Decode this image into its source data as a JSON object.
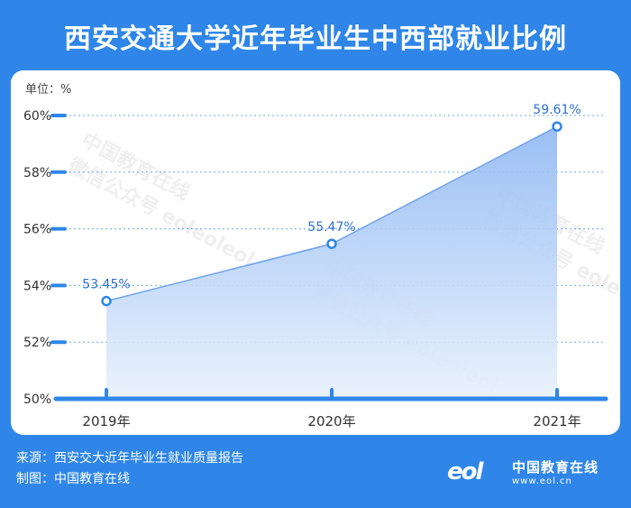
{
  "header": {
    "title": "西安交通大学近年毕业生中西部就业比例"
  },
  "chart_data": {
    "type": "area",
    "unit_label": "单位：%",
    "x": [
      "2019年",
      "2020年",
      "2021年"
    ],
    "values": [
      53.45,
      55.47,
      59.61
    ],
    "value_labels": [
      "53.45%",
      "55.47%",
      "59.61%"
    ],
    "y_ticks": [
      "50%",
      "52%",
      "54%",
      "56%",
      "58%",
      "60%"
    ],
    "y_tick_values": [
      50,
      52,
      54,
      56,
      58,
      60
    ],
    "ylim": [
      50,
      60
    ],
    "grid": true,
    "colors": {
      "line": "#2f86e8",
      "fill_top": "#8fb8f3",
      "fill_bottom": "#e8f1fc",
      "axis": "#2f86e8"
    }
  },
  "footer": {
    "source": "来源：西安交大近年毕业生就业质量报告",
    "maker": "制图：中国教育在线",
    "logo_mark": "eol",
    "logo_name": "中国教育在线",
    "logo_url": "www.eol.cn"
  },
  "watermark": {
    "line1": "中国教育在线",
    "line2": "微信公众号 eoleoleol"
  }
}
